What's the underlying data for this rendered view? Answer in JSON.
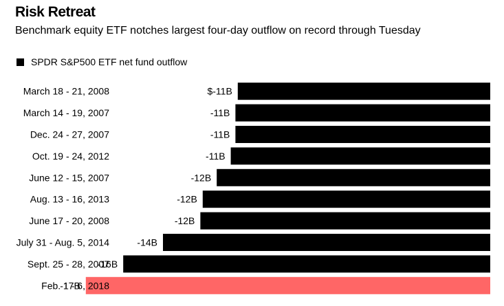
{
  "header": {
    "title": "Risk Retreat",
    "subtitle": "Benchmark equity ETF notches largest four-day outflow on record through Tuesday"
  },
  "legend": {
    "label": "SPDR S&P500 ETF net fund outflow",
    "color": "#000000"
  },
  "colors": {
    "bar": "#000000",
    "highlight": "#ff6666"
  },
  "chart_data": {
    "type": "bar",
    "orientation": "horizontal",
    "title": "Risk Retreat",
    "subtitle": "Benchmark equity ETF notches largest four-day outflow on record through Tuesday",
    "categories": [
      "March 18 - 21, 2008",
      "March 14 - 19, 2007",
      "Dec. 24 - 27, 2007",
      "Oct. 19 - 24, 2012",
      "June 12 - 15, 2007",
      "Aug. 13 - 16, 2013",
      "June 17 - 20, 2008",
      "July 31 - Aug. 5, 2014",
      "Sept. 25 - 28, 2007",
      "Feb. 1 - 6, 2018"
    ],
    "series": [
      {
        "name": "SPDR S&P500 ETF net fund outflow",
        "values": [
          -10.8,
          -10.9,
          -10.9,
          -11.1,
          -11.7,
          -12.3,
          -12.4,
          -14.0,
          -15.7,
          -17.3
        ]
      }
    ],
    "data_labels": [
      "$-11B",
      "-11B",
      "-11B",
      "-11B",
      "-12B",
      "-12B",
      "-12B",
      "-14B",
      "-16B",
      "-17B"
    ],
    "highlight_index": 9,
    "xlim": [
      -20,
      0
    ],
    "xlabel": "",
    "ylabel": "",
    "grid": false,
    "legend_position": "top-left"
  }
}
